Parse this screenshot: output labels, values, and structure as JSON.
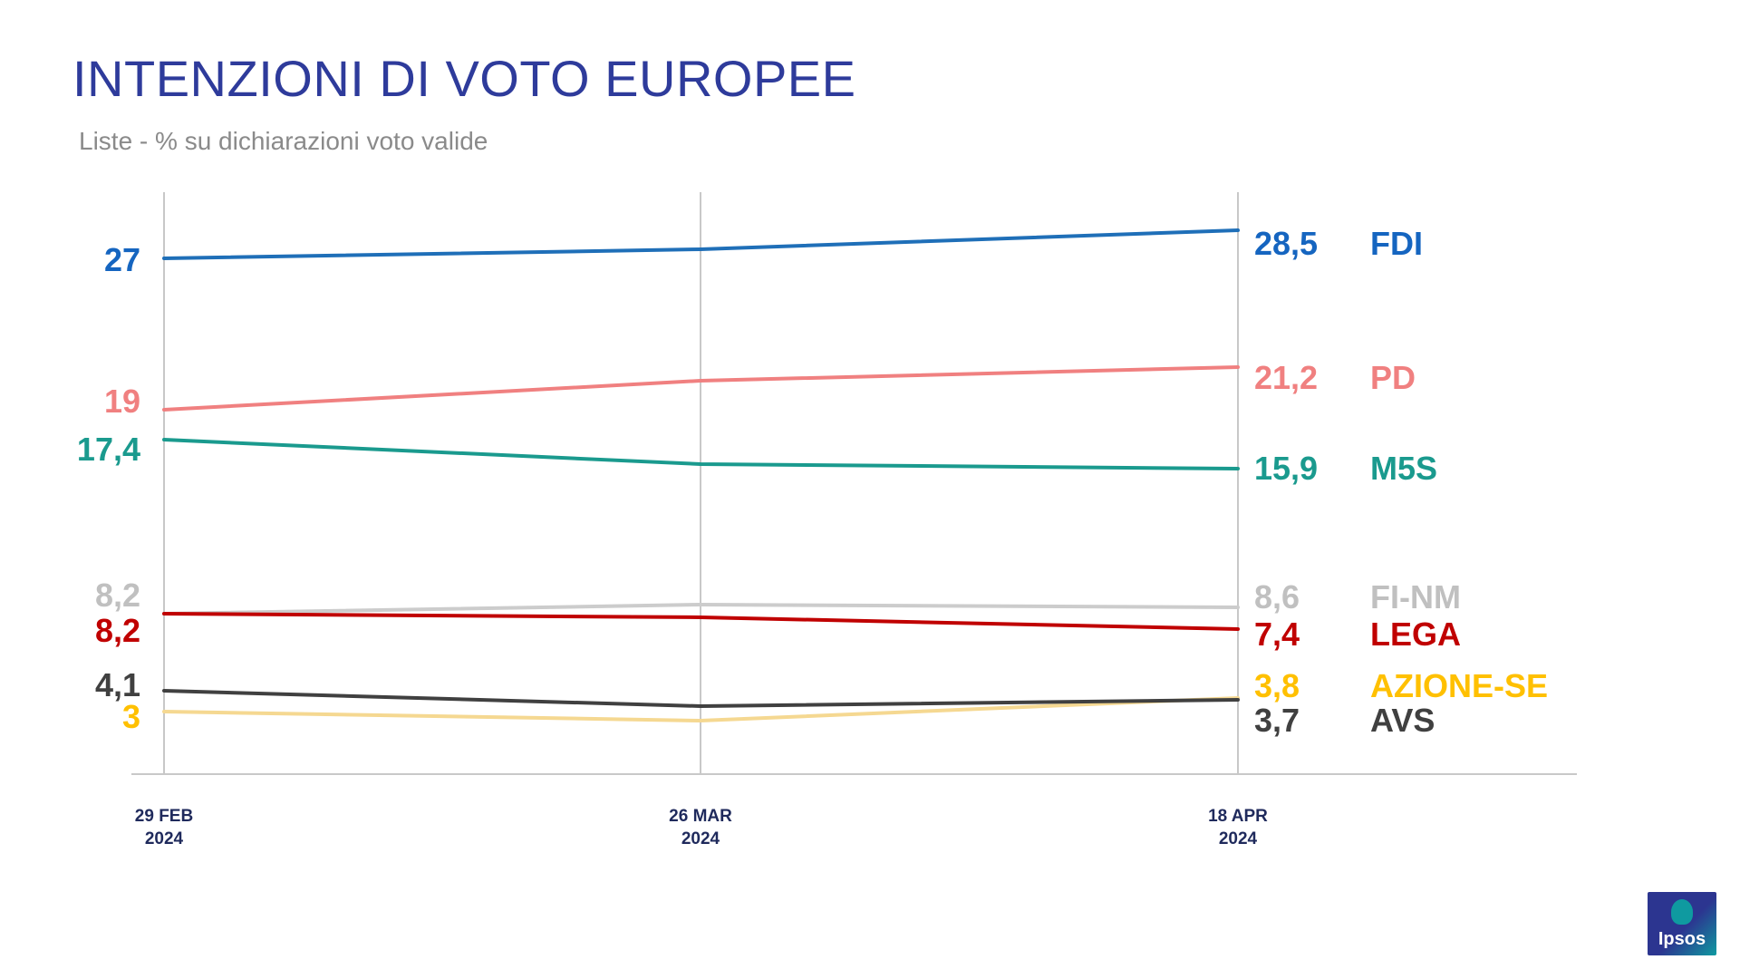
{
  "header": {
    "title": "INTENZIONI DI VOTO EUROPEE",
    "subtitle": "Liste - % su dichiarazioni voto valide"
  },
  "logo": {
    "text": "Ipsos",
    "colors": [
      "#2c3590",
      "#0f9aa0"
    ]
  },
  "chart_data": {
    "type": "line",
    "title": "INTENZIONI DI VOTO EUROPEE",
    "subtitle": "Liste - % su dichiarazioni voto valide",
    "x": [
      {
        "line1": "29 FEB",
        "line2": "2024"
      },
      {
        "line1": "26 MAR",
        "line2": "2024"
      },
      {
        "line1": "18 APR",
        "line2": "2024"
      }
    ],
    "ylim": [
      0,
      30
    ],
    "grid": "vertical",
    "legend": "right (labels at line ends)",
    "series": [
      {
        "name": "FDI",
        "color": "#1f6fb8",
        "values": [
          27,
          27.4,
          28.5
        ],
        "start_label": "27",
        "end_label": "28,5"
      },
      {
        "name": "PD",
        "color": "#f08080",
        "values": [
          19,
          20.5,
          21.2
        ],
        "start_label": "19",
        "end_label": "21,2"
      },
      {
        "name": "M5S",
        "color": "#1a9a8e",
        "values": [
          17.4,
          16.2,
          15.9
        ],
        "start_label": "17,4",
        "end_label": "15,9"
      },
      {
        "name": "FI-NM",
        "color": "#cccccc",
        "values": [
          8.2,
          8.8,
          8.6
        ],
        "start_label": "8,2",
        "end_label": "8,6"
      },
      {
        "name": "LEGA",
        "color": "#c00000",
        "values": [
          8.2,
          8.0,
          7.4
        ],
        "start_label": "8,2",
        "end_label": "7,4"
      },
      {
        "name": "AZIONE-SE",
        "color": "#f5d891",
        "label_color": "#ffc000",
        "values": [
          3.0,
          2.5,
          3.8
        ],
        "start_label": "3",
        "end_label": "3,8"
      },
      {
        "name": "AVS",
        "color": "#404040",
        "values": [
          4.1,
          3.3,
          3.7
        ],
        "start_label": "4,1",
        "end_label": "3,7"
      }
    ]
  }
}
